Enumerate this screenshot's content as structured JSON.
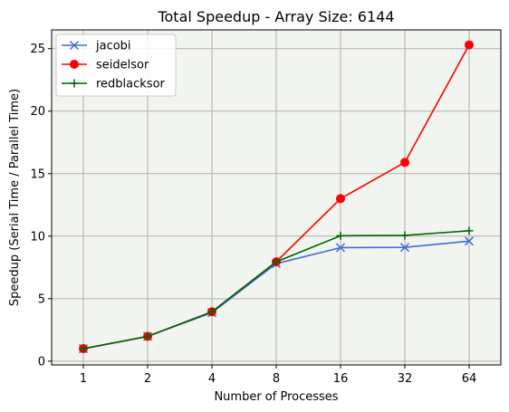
{
  "chart_data": {
    "type": "line",
    "title": "Total Speedup - Array Size: 6144",
    "xlabel": "Number of Processes",
    "ylabel": "Speedup (Serial Time / Parallel Time)",
    "categories": [
      "1",
      "2",
      "4",
      "8",
      "16",
      "32",
      "64"
    ],
    "ylim": [
      -0.3,
      26.5
    ],
    "yticks": [
      0,
      5,
      10,
      15,
      20,
      25
    ],
    "grid": true,
    "legend_position": "top-left",
    "background": "#f2f4ef",
    "series": [
      {
        "name": "jacobi",
        "color": "#4169e1",
        "marker": "x",
        "values": [
          1.0,
          1.98,
          3.88,
          7.8,
          9.08,
          9.1,
          9.6
        ]
      },
      {
        "name": "seidelsor",
        "color": "#ff0000",
        "marker": "o",
        "values": [
          1.0,
          1.98,
          3.95,
          7.95,
          13.0,
          15.9,
          25.3
        ]
      },
      {
        "name": "redblacksor",
        "color": "#006400",
        "marker": "+",
        "values": [
          1.0,
          1.98,
          3.95,
          7.95,
          10.03,
          10.06,
          10.43
        ]
      }
    ]
  }
}
